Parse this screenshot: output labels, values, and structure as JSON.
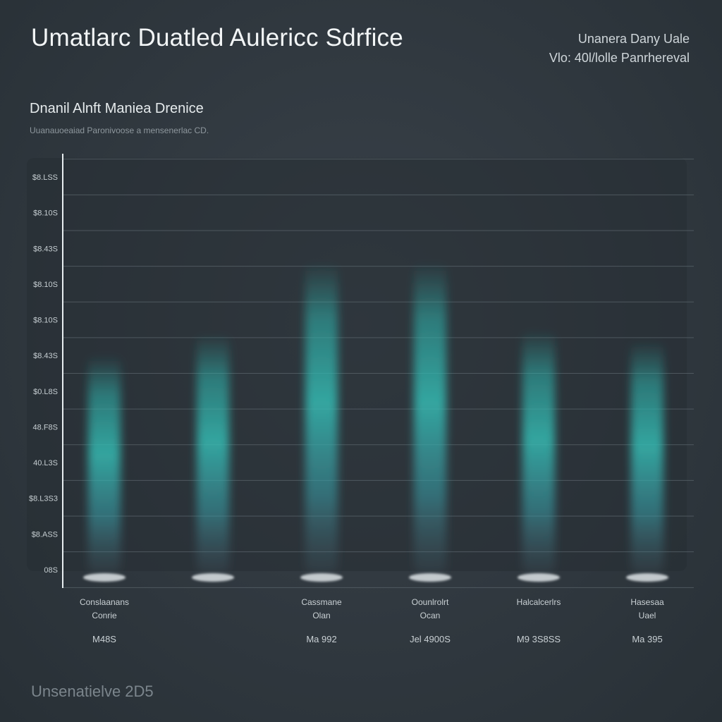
{
  "header": {
    "title": "Umatlarc Duatled Aulericc Sdrfice",
    "right_line1": "Unanera Dany Uale",
    "right_line2": "Vlo: 40l/lolle Panrhereval"
  },
  "footer": {
    "text": "Unsenatielve 2D5"
  },
  "chart_data": {
    "type": "bar",
    "title": "Dnanil Alnft Maniea Drenice",
    "subtitle": "Uuanauoeaiad Paronivoose a mensenerlac CD.",
    "xlabel": "",
    "ylabel": "",
    "y_ticks": [
      "$8.LSS",
      "$8.10S",
      "$8.43S",
      "$8.10S",
      "$8.10S",
      "$8.43S",
      "$0.L8S",
      "48.F8S",
      "40.L3S",
      "$8.L3S3",
      "$8.ASS",
      "08S"
    ],
    "ylim": [
      0,
      11
    ],
    "grid": true,
    "categories": [
      {
        "line1": "Conslaanans",
        "line2": "Conrie",
        "value_label": "M48S"
      },
      {
        "line1": "",
        "line2": "",
        "value_label": ""
      },
      {
        "line1": "Cassmane",
        "line2": "Olan",
        "value_label": "Ma 992"
      },
      {
        "line1": "Oounlrolrt",
        "line2": "Ocan",
        "value_label": "Jel 4900S"
      },
      {
        "line1": "Halcalcerlrs",
        "line2": "",
        "value_label": "M9 3S8SS"
      },
      {
        "line1": "Hasesaa",
        "line2": "Uael",
        "value_label": "Ma 395"
      }
    ],
    "values": [
      6.0,
      6.6,
      8.6,
      8.6,
      6.7,
      6.4
    ],
    "colors": {
      "bar": "#2fb3ad",
      "grid": "#5a646b",
      "axis": "#e8eef0"
    }
  }
}
